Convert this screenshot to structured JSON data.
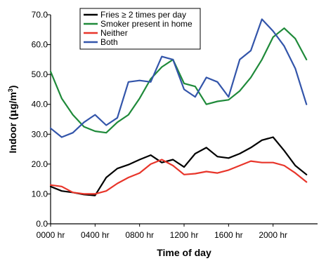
{
  "chart_data": {
    "type": "line",
    "title": "",
    "xlabel": "Time of day",
    "ylabel": "Indoor (μg/m³)",
    "ylabel_parts": {
      "main": "Indoor (",
      "mu": "μ",
      "g": "g/m",
      "sup": "3",
      "close": ")"
    },
    "xlim": [
      0,
      24
    ],
    "ylim": [
      0,
      70
    ],
    "x_ticks": [
      {
        "value": 0,
        "label": "0000 hr"
      },
      {
        "value": 4,
        "label": "0400 hr"
      },
      {
        "value": 8,
        "label": "0800 hr"
      },
      {
        "value": 12,
        "label": "1200 hr"
      },
      {
        "value": 16,
        "label": "1600 hr"
      },
      {
        "value": 20,
        "label": "2000 hr"
      }
    ],
    "y_ticks": [
      {
        "value": 0,
        "label": "0.0"
      },
      {
        "value": 10,
        "label": "10.0"
      },
      {
        "value": 20,
        "label": "20.0"
      },
      {
        "value": 30,
        "label": "30.0"
      },
      {
        "value": 40,
        "label": "40.0"
      },
      {
        "value": 50,
        "label": "50.0"
      },
      {
        "value": 60,
        "label": "60.0"
      },
      {
        "value": 70,
        "label": "70.0"
      }
    ],
    "legend_position": "top-right",
    "grid": false,
    "x": [
      0,
      1,
      2,
      3,
      4,
      5,
      6,
      7,
      8,
      9,
      10,
      11,
      12,
      13,
      14,
      15,
      16,
      17,
      18,
      19,
      20,
      21,
      22,
      23
    ],
    "series": [
      {
        "name": "Fries ≥ 2 times per day",
        "color": "#000000",
        "values": [
          12.5,
          11.0,
          10.5,
          9.8,
          9.5,
          15.5,
          18.5,
          19.8,
          21.5,
          23.0,
          20.5,
          21.5,
          19.0,
          23.5,
          25.5,
          22.5,
          22.0,
          23.5,
          25.5,
          28.0,
          29.0,
          24.5,
          19.5,
          16.5
        ]
      },
      {
        "name": "Smoker present in home",
        "color": "#1f8a3a",
        "values": [
          51.0,
          42.0,
          36.5,
          32.5,
          31.0,
          30.5,
          34.0,
          36.5,
          42.0,
          48.5,
          52.5,
          55.0,
          47.0,
          46.0,
          40.0,
          41.0,
          41.5,
          44.5,
          49.0,
          55.0,
          62.5,
          65.5,
          62.0,
          55.0
        ]
      },
      {
        "name": "Neither",
        "color": "#e8352a",
        "values": [
          13.0,
          12.5,
          10.5,
          10.0,
          10.0,
          11.0,
          13.5,
          15.5,
          17.0,
          20.0,
          21.5,
          19.5,
          16.5,
          16.8,
          17.5,
          17.0,
          18.0,
          19.5,
          21.0,
          20.5,
          20.5,
          19.5,
          17.0,
          14.0
        ]
      },
      {
        "name": "Both",
        "color": "#3355aa",
        "values": [
          32.0,
          29.0,
          30.5,
          34.0,
          36.5,
          33.0,
          35.5,
          47.5,
          48.0,
          47.5,
          56.0,
          55.0,
          45.0,
          42.5,
          49.0,
          47.5,
          42.5,
          55.0,
          58.0,
          68.5,
          64.5,
          59.5,
          52.0,
          40.0
        ]
      }
    ]
  }
}
